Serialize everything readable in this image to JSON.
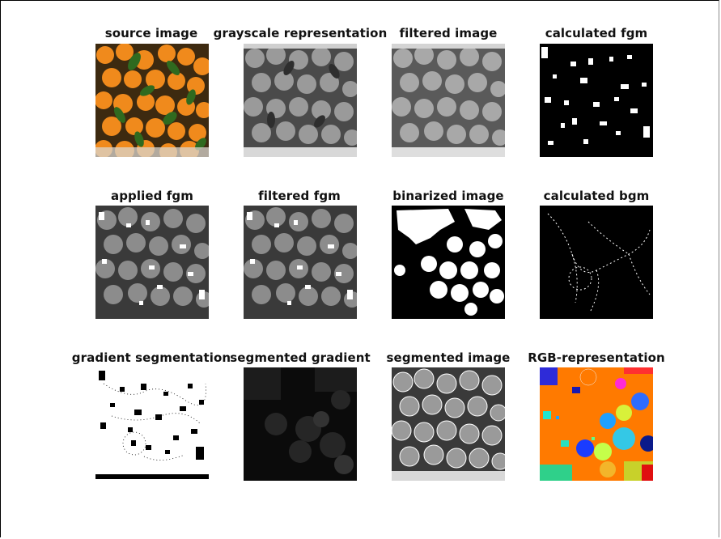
{
  "window": {
    "titles": [
      [
        "source image",
        "grayscale representation",
        "filtered image",
        "calculated fgm"
      ],
      [
        "applied fgm",
        "filtered fgm",
        "binarized image",
        "calculated bgm"
      ],
      [
        "gradient segmentation",
        "segmented gradient",
        "segmented image",
        "RGB-representation"
      ]
    ]
  },
  "colors": {
    "background": "#ffffff",
    "orange": "#f08a1c",
    "leaf": "#2f6a1f",
    "label": "#111111"
  }
}
